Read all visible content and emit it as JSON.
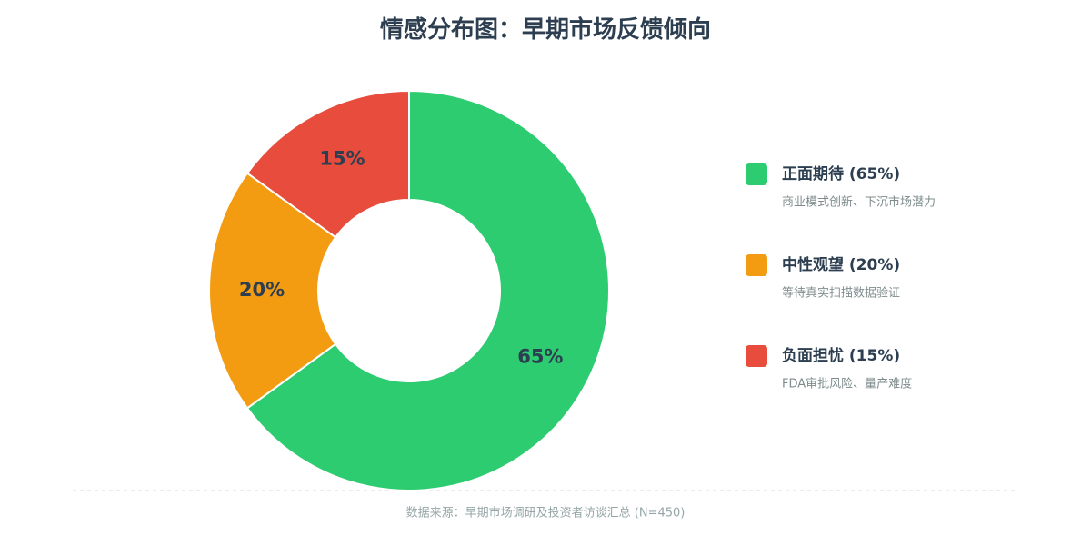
{
  "chart_data": {
    "type": "donut",
    "title": "情感分布图：早期市场反馈倾向",
    "categories": [
      "正面期待 (65%)",
      "中性观望 (20%)",
      "负面担忧 (15%)"
    ],
    "descriptions": [
      "商业模式创新、下沉市场潜力",
      "等待真实扫描数据验证",
      "FDA审批风险、量产难度"
    ],
    "values": [
      65,
      20,
      15
    ],
    "value_labels": [
      "65%",
      "20%",
      "15%"
    ],
    "colors": [
      "#2ecc71",
      "#f39c12",
      "#e74c3c"
    ],
    "legend": "right",
    "source": "数据来源：早期市场调研及投资者访谈汇总 (N=450)"
  }
}
